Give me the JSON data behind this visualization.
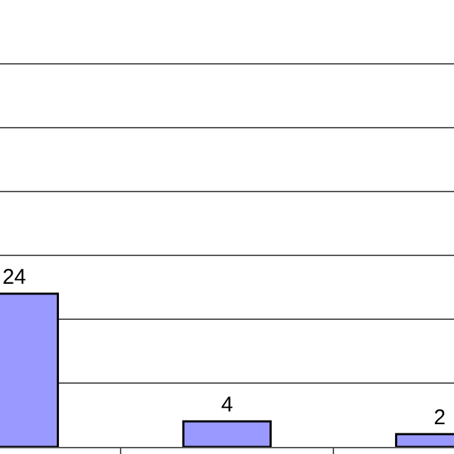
{
  "chart_data": {
    "type": "bar",
    "categories": [
      null,
      null,
      null
    ],
    "series": [
      {
        "color": "#9999ff",
        "values": [
          24,
          4,
          2
        ]
      }
    ],
    "ylim": [
      0,
      70
    ],
    "yticks": [
      {
        "value": 0,
        "label": null
      },
      {
        "value": 10,
        "label": null
      },
      {
        "value": 20,
        "label": null
      },
      {
        "value": 30,
        "label": null
      },
      {
        "value": 40,
        "label": null
      },
      {
        "value": 50,
        "label": null
      },
      {
        "value": 60,
        "label": null
      },
      {
        "value": 70,
        "label": null
      }
    ],
    "grid": "y",
    "data_labels": true,
    "legend": false,
    "tick_labels": false
  }
}
